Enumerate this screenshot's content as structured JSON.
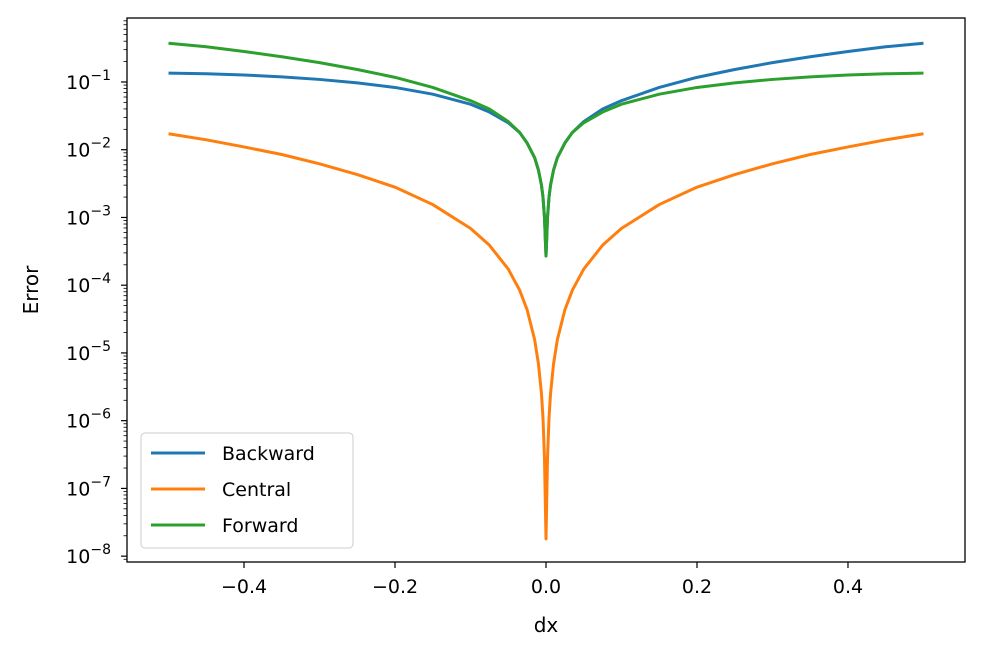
{
  "chart_data": {
    "type": "line",
    "title": "",
    "xlabel": "dx",
    "ylabel": "Error",
    "xlim": [
      -0.555,
      0.555
    ],
    "ylim": [
      8.2e-09,
      0.88
    ],
    "yscale": "log",
    "x_ticks": [
      -0.4,
      -0.2,
      0.0,
      0.2,
      0.4
    ],
    "x_tick_labels": [
      "−0.4",
      "−0.2",
      "0.0",
      "0.2",
      "0.4"
    ],
    "y_tick_exponents": [
      -8,
      -7,
      -6,
      -5,
      -4,
      -3,
      -2,
      -1
    ],
    "y_tick_base": "10",
    "grid": false,
    "legend": {
      "position": "lower-left"
    },
    "x": [
      -0.5,
      -0.45,
      -0.4,
      -0.35,
      -0.3,
      -0.25,
      -0.2,
      -0.15,
      -0.1,
      -0.075,
      -0.05,
      -0.035,
      -0.025,
      -0.015,
      -0.01,
      -0.006,
      -0.004,
      -0.002,
      -0.001,
      0.0,
      0.001,
      0.002,
      0.004,
      0.006,
      0.01,
      0.015,
      0.025,
      0.035,
      0.05,
      0.075,
      0.1,
      0.15,
      0.2,
      0.25,
      0.3,
      0.35,
      0.4,
      0.45,
      0.5
    ],
    "series": [
      {
        "name": "Backward",
        "color": "#1f77b4",
        "values": [
          0.135,
          0.132,
          0.127,
          0.119,
          0.109,
          0.097,
          0.083,
          0.066,
          0.047,
          0.036,
          0.025,
          0.018,
          0.0125,
          0.0076,
          0.005,
          0.003,
          0.002,
          0.001,
          0.0005,
          0.00027,
          0.0005,
          0.001,
          0.002,
          0.003,
          0.005,
          0.0076,
          0.0126,
          0.018,
          0.026,
          0.04,
          0.053,
          0.083,
          0.117,
          0.153,
          0.193,
          0.236,
          0.282,
          0.331,
          0.373
        ]
      },
      {
        "name": "Central",
        "color": "#ff7f0e",
        "values": [
          0.0172,
          0.014,
          0.011,
          0.0085,
          0.0062,
          0.0043,
          0.0028,
          0.00155,
          0.00069,
          0.00039,
          0.000173,
          8.48e-05,
          4.33e-05,
          1.56e-05,
          6.9e-06,
          2.5e-06,
          1.1e-06,
          2.8e-07,
          7e-08,
          1.8e-08,
          7e-08,
          2.8e-07,
          1.1e-06,
          2.5e-06,
          6.9e-06,
          1.56e-05,
          4.33e-05,
          8.48e-05,
          0.000173,
          0.00039,
          0.00069,
          0.00155,
          0.0028,
          0.0043,
          0.0062,
          0.0085,
          0.011,
          0.014,
          0.0172
        ]
      },
      {
        "name": "Forward",
        "color": "#2ca02c",
        "values": [
          0.373,
          0.331,
          0.282,
          0.236,
          0.193,
          0.153,
          0.117,
          0.083,
          0.053,
          0.04,
          0.026,
          0.018,
          0.0126,
          0.0076,
          0.005,
          0.003,
          0.002,
          0.001,
          0.0005,
          0.00027,
          0.0005,
          0.001,
          0.002,
          0.003,
          0.005,
          0.0076,
          0.0125,
          0.018,
          0.025,
          0.036,
          0.047,
          0.066,
          0.083,
          0.097,
          0.109,
          0.119,
          0.127,
          0.132,
          0.135
        ]
      }
    ]
  }
}
